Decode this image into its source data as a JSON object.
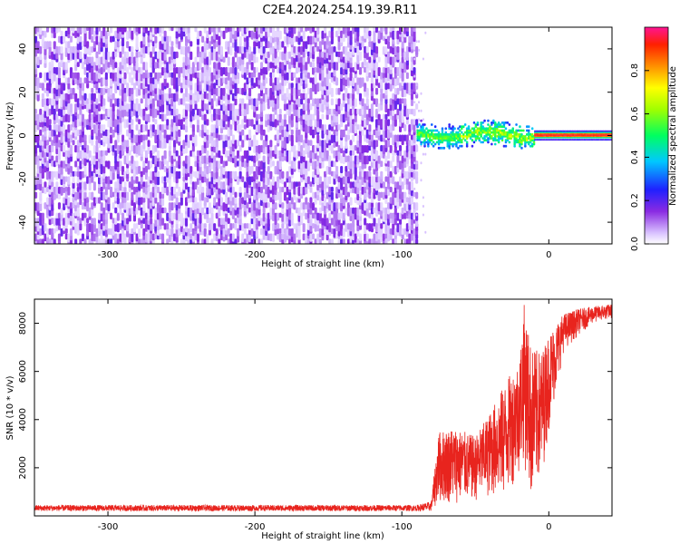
{
  "title": "C2E4.2024.254.19.39.R11",
  "chart_data": [
    {
      "type": "heatmap",
      "xlabel": "Height of straight line (km)",
      "ylabel": "Frequency (Hz)",
      "xlim": [
        -350,
        43
      ],
      "ylim": [
        -50,
        50
      ],
      "xticks": [
        -300,
        -200,
        -100,
        0
      ],
      "yticks": [
        -40,
        -20,
        0,
        20,
        40
      ],
      "colorbar": {
        "label": "Normalized spectral amplitude",
        "range": [
          0,
          1
        ],
        "ticks": [
          "0.0",
          "0.2",
          "0.4",
          "0.6",
          "0.8"
        ],
        "colormap": "rainbow (white → purple → blue → cyan → green → yellow → orange → red → magenta)"
      },
      "regions": [
        {
          "x_range": [
            -350,
            -90
          ],
          "freq_range": [
            -50,
            50
          ],
          "amplitude": "low (~0.05–0.15), broadband noise"
        },
        {
          "x_range": [
            -90,
            -10
          ],
          "freq_range": [
            -6,
            6
          ],
          "amplitude": "medium (~0.2–0.6), signal band near 0 Hz"
        },
        {
          "x_range": [
            -10,
            43
          ],
          "freq_range": [
            -1,
            1
          ],
          "amplitude": "high (~0.8–1.0), narrow line at 0 Hz"
        }
      ]
    },
    {
      "type": "line",
      "xlabel": "Height of straight line (km)",
      "ylabel": "SNR (10 * v/v)",
      "xlim": [
        -350,
        43
      ],
      "ylim": [
        0,
        9000
      ],
      "xticks": [
        -300,
        -200,
        -100,
        0
      ],
      "yticks": [
        2000,
        4000,
        6000,
        8000
      ],
      "color": "#e8241e",
      "envelope": {
        "x": [
          -350,
          -150,
          -90,
          -80,
          -75,
          -65,
          -50,
          -40,
          -30,
          -20,
          -17,
          -12,
          -5,
          0,
          10,
          20,
          30,
          43
        ],
        "min": [
          200,
          200,
          200,
          200,
          500,
          500,
          600,
          800,
          700,
          1800,
          2200,
          500,
          1500,
          3500,
          6800,
          7500,
          8000,
          8200
        ],
        "max": [
          450,
          450,
          450,
          600,
          3500,
          3700,
          3300,
          4300,
          5500,
          6500,
          8900,
          7000,
          6800,
          7600,
          8400,
          8600,
          8700,
          8800
        ]
      }
    }
  ]
}
